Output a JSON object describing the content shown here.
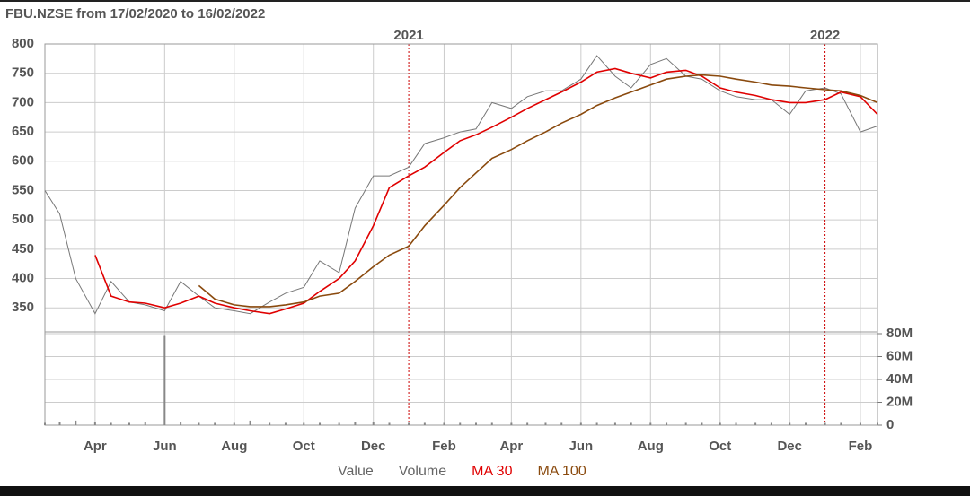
{
  "chart_data": {
    "type": "stock",
    "title": "FBU.NZSE from 17/02/2020 to 16/02/2022",
    "x": [
      "2020-02-17",
      "2020-03-01",
      "2020-03-15",
      "2020-04-01",
      "2020-04-15",
      "2020-05-01",
      "2020-05-15",
      "2020-06-01",
      "2020-06-15",
      "2020-07-01",
      "2020-07-15",
      "2020-08-01",
      "2020-08-15",
      "2020-09-01",
      "2020-09-15",
      "2020-10-01",
      "2020-10-15",
      "2020-11-01",
      "2020-11-15",
      "2020-12-01",
      "2020-12-15",
      "2021-01-01",
      "2021-01-15",
      "2021-02-01",
      "2021-02-15",
      "2021-03-01",
      "2021-03-15",
      "2021-04-01",
      "2021-04-15",
      "2021-05-01",
      "2021-05-15",
      "2021-06-01",
      "2021-06-15",
      "2021-07-01",
      "2021-07-15",
      "2021-08-01",
      "2021-08-15",
      "2021-09-01",
      "2021-09-15",
      "2021-10-01",
      "2021-10-15",
      "2021-11-01",
      "2021-11-15",
      "2021-12-01",
      "2021-12-15",
      "2022-01-01",
      "2022-01-15",
      "2022-02-01",
      "2022-02-16"
    ],
    "xlim": [
      "2020-02-17",
      "2022-02-16"
    ],
    "xticks": [
      {
        "value": "2020-04-01",
        "label": "Apr"
      },
      {
        "value": "2020-06-01",
        "label": "Jun"
      },
      {
        "value": "2020-08-01",
        "label": "Aug"
      },
      {
        "value": "2020-10-01",
        "label": "Oct"
      },
      {
        "value": "2020-12-01",
        "label": "Dec"
      },
      {
        "value": "2021-02-01",
        "label": "Feb"
      },
      {
        "value": "2021-04-01",
        "label": "Apr"
      },
      {
        "value": "2021-06-01",
        "label": "Jun"
      },
      {
        "value": "2021-08-01",
        "label": "Aug"
      },
      {
        "value": "2021-10-01",
        "label": "Oct"
      },
      {
        "value": "2021-12-01",
        "label": "Dec"
      },
      {
        "value": "2022-02-01",
        "label": "Feb"
      }
    ],
    "year_markers": [
      {
        "value": "2021-01-01",
        "label": "2021"
      },
      {
        "value": "2022-01-01",
        "label": "2022"
      }
    ],
    "ylim": [
      309,
      800
    ],
    "yticks": [
      350,
      400,
      450,
      500,
      550,
      600,
      650,
      700,
      750,
      800
    ],
    "y2lim": [
      0,
      80000000
    ],
    "y2ticks": [
      {
        "value": 0,
        "label": "0"
      },
      {
        "value": 20000000,
        "label": "20M"
      },
      {
        "value": 40000000,
        "label": "40M"
      },
      {
        "value": 60000000,
        "label": "60M"
      },
      {
        "value": 80000000,
        "label": "80M"
      }
    ],
    "grid": true,
    "marker_color": "#cc0000",
    "series": [
      {
        "name": "Value",
        "color": "#777777",
        "values": [
          550,
          510,
          400,
          340,
          395,
          360,
          355,
          345,
          395,
          370,
          350,
          345,
          340,
          360,
          375,
          385,
          430,
          410,
          520,
          575,
          575,
          590,
          630,
          640,
          650,
          655,
          700,
          690,
          710,
          720,
          720,
          740,
          780,
          745,
          725,
          765,
          775,
          745,
          740,
          720,
          710,
          705,
          705,
          680,
          720,
          725,
          715,
          650,
          660
        ]
      },
      {
        "name": "Volume",
        "color": "#888888",
        "axis": "y2",
        "values": [
          2000000,
          3000000,
          4000000,
          3000000,
          2000000,
          2000000,
          3000000,
          78000000,
          3000000,
          2000000,
          2000000,
          2000000,
          4000000,
          2000000,
          2000000,
          2000000,
          2000000,
          2000000,
          3000000,
          3000000,
          2000000,
          2000000,
          2000000,
          2000000,
          2000000,
          2000000,
          2000000,
          2000000,
          2000000,
          2000000,
          2000000,
          2000000,
          2000000,
          2000000,
          2000000,
          2000000,
          2000000,
          2000000,
          2000000,
          2000000,
          2000000,
          2000000,
          2000000,
          2000000,
          2000000,
          2000000,
          2000000,
          2000000,
          2000000
        ]
      },
      {
        "name": "MA 30",
        "color": "#e00000",
        "values": [
          null,
          null,
          null,
          440,
          370,
          360,
          358,
          350,
          358,
          370,
          358,
          350,
          345,
          340,
          348,
          358,
          378,
          400,
          430,
          490,
          555,
          575,
          590,
          615,
          635,
          645,
          658,
          675,
          690,
          705,
          718,
          735,
          752,
          758,
          750,
          742,
          752,
          755,
          745,
          725,
          718,
          712,
          705,
          700,
          700,
          705,
          718,
          710,
          680
        ]
      },
      {
        "name": "MA 100",
        "color": "#8a4a0e",
        "values": [
          null,
          null,
          null,
          null,
          null,
          null,
          null,
          null,
          null,
          388,
          365,
          355,
          352,
          352,
          355,
          360,
          370,
          375,
          395,
          420,
          440,
          455,
          490,
          525,
          555,
          580,
          605,
          620,
          635,
          650,
          665,
          680,
          695,
          708,
          718,
          730,
          740,
          745,
          747,
          745,
          740,
          735,
          730,
          728,
          725,
          722,
          720,
          712,
          700
        ]
      }
    ]
  }
}
